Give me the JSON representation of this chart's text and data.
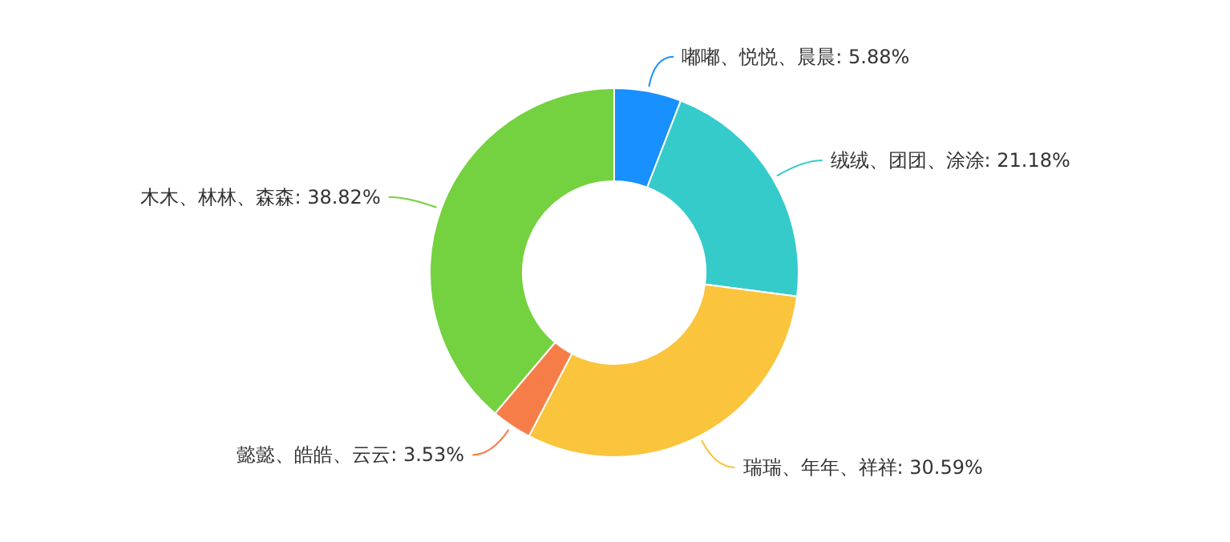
{
  "chart_data": {
    "type": "donut",
    "categories": [
      "嘟嘟、悦悦、晨晨",
      "绒绒、团团、涂涂",
      "瑞瑞、年年、祥祥",
      "懿懿、皓皓、云云",
      "木木、林林、森森"
    ],
    "values": [
      5.88,
      21.18,
      30.59,
      3.53,
      38.82
    ],
    "value_labels": [
      "5.88%",
      "21.18%",
      "30.59%",
      "3.53%",
      "38.82%"
    ],
    "colors": [
      "#1890ff",
      "#36cbcb",
      "#fbc43d",
      "#f77d48",
      "#74d13f"
    ]
  }
}
